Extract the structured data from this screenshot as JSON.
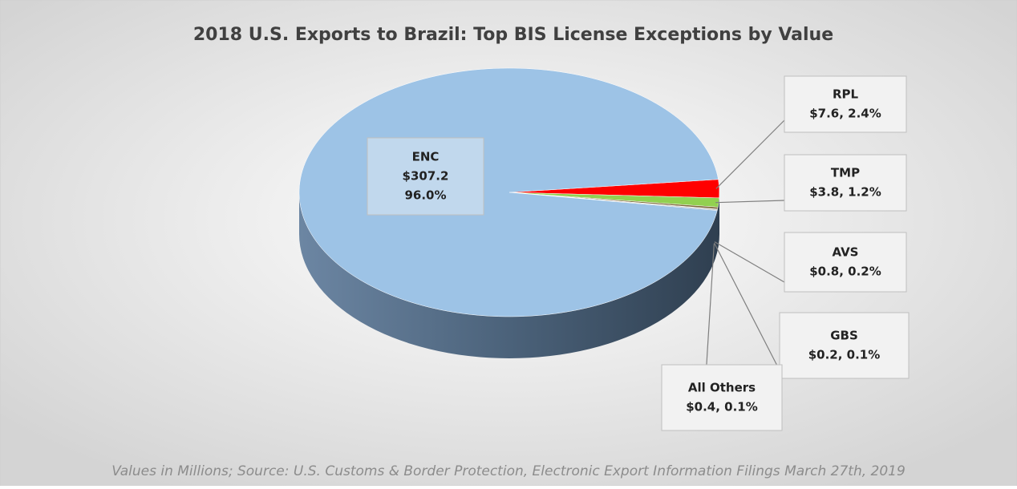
{
  "chart_data": {
    "type": "pie",
    "title": "2018 U.S. Exports to Brazil: Top BIS License Exceptions by Value",
    "note": "Values in Millions; Source: U.S. Customs & Border Protection, Electronic Export Information Filings March 27th, 2019",
    "categories": [
      "ENC",
      "RPL",
      "TMP",
      "AVS",
      "GBS",
      "All Others"
    ],
    "values": [
      307.2,
      7.6,
      3.8,
      0.8,
      0.2,
      0.4
    ],
    "value_labels": [
      [
        "$307.2",
        "96.0%"
      ],
      [
        "$7.6, 2.4%"
      ],
      [
        "$3.8, 1.2%"
      ],
      [
        "$0.8, 0.2%"
      ],
      [
        "$0.2, 0.1%"
      ],
      [
        "$0.4, 0.1%"
      ]
    ],
    "colors": [
      "#9dc3e6",
      "#ff0000",
      "#92d050",
      "#7f6a3a",
      "#404040",
      "#a6a6a6"
    ]
  }
}
